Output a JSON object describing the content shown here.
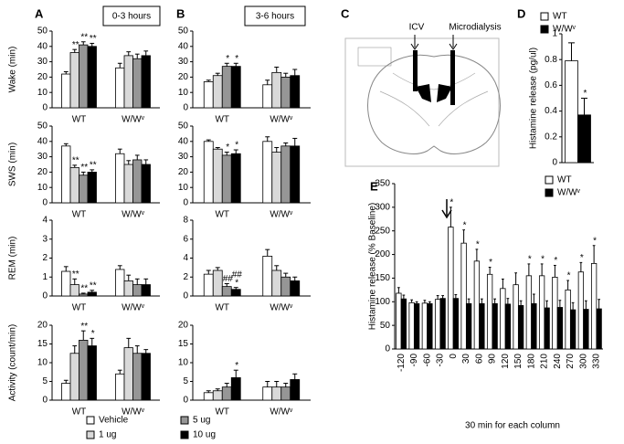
{
  "panels": [
    "A",
    "B",
    "C",
    "D",
    "E"
  ],
  "headers": [
    "0-3 hours",
    "3-6 hours"
  ],
  "legend": [
    {
      "name": "Vehicle",
      "color": "#ffffff"
    },
    {
      "name": "1 ug",
      "color": "#d9d9d9"
    },
    {
      "name": "5 ug",
      "color": "#969696"
    },
    {
      "name": "10 ug",
      "color": "#000000"
    }
  ],
  "diagram": {
    "labels": [
      "ICV",
      "Microdialysis"
    ]
  },
  "chart_data": [
    {
      "type": "bar",
      "ylabel": "Wake (min)",
      "categories": [
        "WT",
        "W/Wᵛ"
      ],
      "ylim": [
        0,
        50
      ],
      "yticks": [
        0,
        10,
        20,
        30,
        40,
        50
      ],
      "series": [
        {
          "values": [
            22,
            26
          ],
          "errors": [
            1.5,
            3
          ]
        },
        {
          "values": [
            36,
            34
          ],
          "errors": [
            2,
            2.5
          ],
          "annotations": [
            [
              "**"
            ],
            null
          ]
        },
        {
          "values": [
            41,
            32
          ],
          "errors": [
            2,
            3
          ],
          "annotations": [
            [
              "**"
            ],
            null
          ]
        },
        {
          "values": [
            40,
            34
          ],
          "errors": [
            2,
            3
          ],
          "annotations": [
            [
              "**"
            ],
            null
          ]
        }
      ]
    },
    {
      "type": "bar",
      "ylabel": "SWS (min)",
      "categories": [
        "WT",
        "W/Wᵛ"
      ],
      "ylim": [
        0,
        50
      ],
      "yticks": [
        0,
        10,
        20,
        30,
        40,
        50
      ],
      "series": [
        {
          "values": [
            37,
            32
          ],
          "errors": [
            1.5,
            3
          ]
        },
        {
          "values": [
            23,
            25
          ],
          "errors": [
            1.5,
            2.5
          ],
          "annotations": [
            [
              "**"
            ],
            null
          ]
        },
        {
          "values": [
            18,
            28
          ],
          "errors": [
            2,
            3
          ],
          "annotations": [
            [
              "**"
            ],
            null
          ]
        },
        {
          "values": [
            20,
            25
          ],
          "errors": [
            1.5,
            3
          ],
          "annotations": [
            [
              "**"
            ],
            null
          ]
        }
      ]
    },
    {
      "type": "bar",
      "ylabel": "REM (min)",
      "categories": [
        "WT",
        "W/Wᵛ"
      ],
      "ylim": [
        0,
        4
      ],
      "yticks": [
        0,
        1,
        2,
        3,
        4
      ],
      "series": [
        {
          "values": [
            1.3,
            1.4
          ],
          "errors": [
            0.25,
            0.2
          ]
        },
        {
          "values": [
            0.6,
            0.8
          ],
          "errors": [
            0.3,
            0.3
          ],
          "annotations": [
            [
              "**"
            ],
            null
          ]
        },
        {
          "values": [
            0.1,
            0.6
          ],
          "errors": [
            0.05,
            0.3
          ],
          "annotations": [
            [
              "**"
            ],
            null
          ]
        },
        {
          "values": [
            0.2,
            0.6
          ],
          "errors": [
            0.1,
            0.3
          ],
          "annotations": [
            [
              "**"
            ],
            null
          ]
        }
      ]
    },
    {
      "type": "bar",
      "ylabel": "Activity (count/min)",
      "categories": [
        "WT",
        "W/Wᵛ"
      ],
      "ylim": [
        0,
        20
      ],
      "yticks": [
        0,
        5,
        10,
        15,
        20
      ],
      "series": [
        {
          "values": [
            4.5,
            7
          ],
          "errors": [
            0.8,
            1
          ]
        },
        {
          "values": [
            12.5,
            14
          ],
          "errors": [
            2,
            2.5
          ]
        },
        {
          "values": [
            16,
            12.5
          ],
          "errors": [
            2.5,
            2
          ],
          "annotations": [
            [
              "**"
            ],
            null
          ]
        },
        {
          "values": [
            14.5,
            12.5
          ],
          "errors": [
            2,
            1
          ],
          "annotations": [
            [
              "*"
            ],
            null
          ]
        }
      ]
    },
    {
      "type": "bar",
      "categories": [
        "WT",
        "W/Wᵛ"
      ],
      "ylim": [
        0,
        50
      ],
      "yticks": [
        0,
        10,
        20,
        30,
        40,
        50
      ],
      "series": [
        {
          "values": [
            17,
            15
          ],
          "errors": [
            1,
            3
          ]
        },
        {
          "values": [
            21,
            23
          ],
          "errors": [
            1.5,
            3.5
          ]
        },
        {
          "values": [
            27,
            20
          ],
          "errors": [
            2,
            2.5
          ],
          "annotations": [
            [
              "*"
            ],
            null
          ]
        },
        {
          "values": [
            27,
            21
          ],
          "errors": [
            2,
            4
          ],
          "annotations": [
            [
              "*"
            ],
            null
          ]
        }
      ]
    },
    {
      "type": "bar",
      "categories": [
        "WT",
        "W/Wᵛ"
      ],
      "ylim": [
        0,
        50
      ],
      "yticks": [
        0,
        10,
        20,
        30,
        40,
        50
      ],
      "series": [
        {
          "values": [
            40,
            40
          ],
          "errors": [
            1,
            3
          ]
        },
        {
          "values": [
            35,
            33
          ],
          "errors": [
            1,
            3
          ]
        },
        {
          "values": [
            31,
            37
          ],
          "errors": [
            2,
            2
          ],
          "annotations": [
            [
              "*"
            ],
            null
          ]
        },
        {
          "values": [
            32,
            37
          ],
          "errors": [
            2.5,
            5
          ],
          "annotations": [
            [
              "*"
            ],
            null
          ]
        }
      ]
    },
    {
      "type": "bar",
      "categories": [
        "WT",
        "W/Wᵛ"
      ],
      "ylim": [
        0,
        8
      ],
      "yticks": [
        0,
        2,
        4,
        6,
        8
      ],
      "series": [
        {
          "values": [
            2.3,
            4.2
          ],
          "errors": [
            0.4,
            0.7
          ]
        },
        {
          "values": [
            2.7,
            2.7
          ],
          "errors": [
            0.3,
            0.5
          ]
        },
        {
          "values": [
            1.0,
            2.0
          ],
          "errors": [
            0.3,
            0.4
          ],
          "annotations": [
            [
              "##"
            ],
            null
          ]
        },
        {
          "values": [
            0.7,
            1.6
          ],
          "errors": [
            0.2,
            0.4
          ],
          "annotations": [
            [
              "##",
              "*"
            ],
            null
          ]
        }
      ]
    },
    {
      "type": "bar",
      "categories": [
        "WT",
        "W/Wᵛ"
      ],
      "ylim": [
        0,
        20
      ],
      "yticks": [
        0,
        5,
        10,
        15,
        20
      ],
      "series": [
        {
          "values": [
            2,
            3.5
          ],
          "errors": [
            0.5,
            1.5
          ]
        },
        {
          "values": [
            2.5,
            3.5
          ],
          "errors": [
            0.5,
            1.5
          ]
        },
        {
          "values": [
            3.5,
            3.5
          ],
          "errors": [
            1,
            1
          ]
        },
        {
          "values": [
            6,
            5.5
          ],
          "errors": [
            2,
            1.5
          ],
          "annotations": [
            [
              "*"
            ],
            null
          ]
        }
      ]
    },
    {
      "type": "bar",
      "ylabel": "Histamine release (pg/ul)",
      "ylim": [
        0,
        1
      ],
      "yticks": [
        0,
        0.2,
        0.4,
        0.6,
        0.8,
        1
      ],
      "legend": "top-left",
      "series": [
        {
          "name": "WT",
          "color": "#ffffff",
          "values": [
            0.79
          ],
          "errors": [
            0.14
          ]
        },
        {
          "name": "W/Wᵛ",
          "color": "#000000",
          "values": [
            0.37
          ],
          "errors": [
            0.13
          ],
          "annotations": [
            [
              "*"
            ]
          ]
        }
      ]
    },
    {
      "type": "bar",
      "ylabel": "Histamine release (% Baseline)",
      "xlabel": "30 min for each column",
      "legend": "top-right",
      "x": [
        -120,
        -90,
        -60,
        -30,
        0,
        30,
        60,
        90,
        120,
        150,
        180,
        210,
        240,
        270,
        300,
        330
      ],
      "xlim": [
        -135,
        345
      ],
      "ylim": [
        0,
        350
      ],
      "yticks": [
        0,
        50,
        100,
        150,
        200,
        250,
        300,
        350
      ],
      "series": [
        {
          "name": "WT",
          "color": "#ffffff",
          "values": [
            118,
            98,
            97,
            105,
            258,
            224,
            186,
            158,
            128,
            136,
            155,
            155,
            152,
            125,
            163,
            181
          ],
          "errors": [
            12,
            6,
            6,
            8,
            42,
            28,
            25,
            15,
            20,
            25,
            25,
            25,
            25,
            20,
            20,
            38
          ],
          "annotations": [
            null,
            null,
            null,
            null,
            [
              "*"
            ],
            [
              "*"
            ],
            [
              "*"
            ],
            [
              "*"
            ],
            null,
            null,
            [
              "*"
            ],
            [
              "*"
            ],
            [
              "*"
            ],
            [
              "*"
            ],
            [
              "*"
            ],
            [
              "*"
            ]
          ]
        },
        {
          "name": "W/Wᵛ",
          "color": "#000000",
          "values": [
            106,
            96,
            96,
            107,
            107,
            96,
            96,
            96,
            95,
            92,
            96,
            87,
            88,
            83,
            84,
            85
          ],
          "errors": [
            8,
            4,
            4,
            6,
            8,
            10,
            10,
            10,
            12,
            10,
            20,
            15,
            15,
            15,
            18,
            20
          ]
        }
      ]
    }
  ]
}
